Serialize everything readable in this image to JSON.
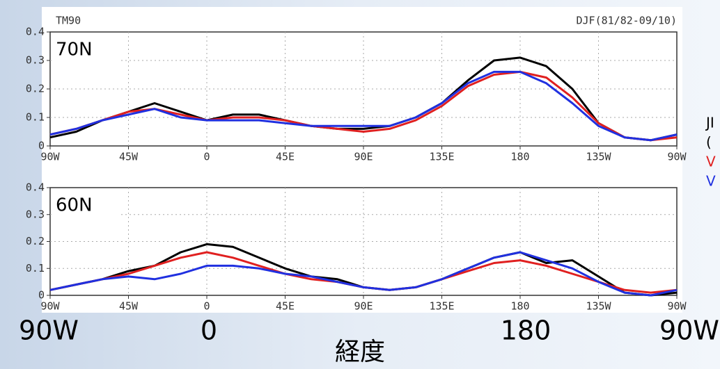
{
  "header": {
    "left": "TM90",
    "right": "DJF(81/82-09/10)"
  },
  "chart_data": [
    {
      "type": "line",
      "annotation": "70N",
      "x": [
        -90,
        -75,
        -60,
        -45,
        -30,
        -15,
        0,
        15,
        30,
        45,
        60,
        75,
        90,
        105,
        120,
        135,
        150,
        165,
        180,
        195,
        210,
        225,
        240,
        255,
        270
      ],
      "xlim": [
        -90,
        270
      ],
      "xticks": [
        {
          "value": -90,
          "label": "90W"
        },
        {
          "value": -45,
          "label": "45W"
        },
        0,
        {
          "value": 45,
          "label": "45E"
        },
        {
          "value": 90,
          "label": "90E"
        },
        {
          "value": 135,
          "label": "135E"
        },
        180,
        {
          "value": 225,
          "label": "135W"
        },
        {
          "value": 270,
          "label": "90W"
        }
      ],
      "ylim": [
        0,
        0.4
      ],
      "yticks": [
        0,
        0.1,
        0.2,
        0.3,
        0.4
      ],
      "grid": true,
      "series": [
        {
          "color": "#000000",
          "values": [
            0.03,
            0.05,
            0.09,
            0.12,
            0.15,
            0.12,
            0.09,
            0.11,
            0.11,
            0.09,
            0.07,
            0.06,
            0.06,
            0.07,
            0.1,
            0.15,
            0.23,
            0.3,
            0.31,
            0.28,
            0.2,
            0.08,
            0.03,
            0.02,
            0.04
          ]
        },
        {
          "color": "#e02020",
          "values": [
            0.04,
            0.06,
            0.09,
            0.12,
            0.13,
            0.11,
            0.09,
            0.1,
            0.1,
            0.09,
            0.07,
            0.06,
            0.05,
            0.06,
            0.09,
            0.14,
            0.21,
            0.25,
            0.26,
            0.24,
            0.17,
            0.08,
            0.03,
            0.02,
            0.03
          ]
        },
        {
          "color": "#2030e0",
          "values": [
            0.04,
            0.06,
            0.09,
            0.11,
            0.13,
            0.1,
            0.09,
            0.09,
            0.09,
            0.08,
            0.07,
            0.07,
            0.07,
            0.07,
            0.1,
            0.15,
            0.22,
            0.26,
            0.26,
            0.22,
            0.15,
            0.07,
            0.03,
            0.02,
            0.04
          ]
        }
      ]
    },
    {
      "type": "line",
      "annotation": "60N",
      "x": [
        -90,
        -75,
        -60,
        -45,
        -30,
        -15,
        0,
        15,
        30,
        45,
        60,
        75,
        90,
        105,
        120,
        135,
        150,
        165,
        180,
        195,
        210,
        225,
        240,
        255,
        270
      ],
      "xlim": [
        -90,
        270
      ],
      "xticks": [
        {
          "value": -90,
          "label": "90W"
        },
        {
          "value": -45,
          "label": "45W"
        },
        0,
        {
          "value": 45,
          "label": "45E"
        },
        {
          "value": 90,
          "label": "90E"
        },
        {
          "value": 135,
          "label": "135E"
        },
        180,
        {
          "value": 225,
          "label": "135W"
        },
        {
          "value": 270,
          "label": "90W"
        }
      ],
      "ylim": [
        0,
        0.4
      ],
      "yticks": [
        0,
        0.1,
        0.2,
        0.3,
        0.4
      ],
      "grid": true,
      "series": [
        {
          "color": "#000000",
          "values": [
            0.02,
            0.04,
            0.06,
            0.09,
            0.11,
            0.16,
            0.19,
            0.18,
            0.14,
            0.1,
            0.07,
            0.06,
            0.03,
            0.02,
            0.03,
            0.06,
            0.1,
            0.14,
            0.16,
            0.12,
            0.13,
            0.07,
            0.01,
            0.0,
            0.01
          ]
        },
        {
          "color": "#e02020",
          "values": [
            0.02,
            0.04,
            0.06,
            0.08,
            0.11,
            0.14,
            0.16,
            0.14,
            0.11,
            0.08,
            0.06,
            0.05,
            0.03,
            0.02,
            0.03,
            0.06,
            0.09,
            0.12,
            0.13,
            0.11,
            0.08,
            0.05,
            0.02,
            0.01,
            0.02
          ]
        },
        {
          "color": "#2030e0",
          "values": [
            0.02,
            0.04,
            0.06,
            0.07,
            0.06,
            0.08,
            0.11,
            0.11,
            0.1,
            0.08,
            0.07,
            0.05,
            0.03,
            0.02,
            0.03,
            0.06,
            0.1,
            0.14,
            0.16,
            0.13,
            0.1,
            0.05,
            0.01,
            0.0,
            0.02
          ]
        }
      ]
    }
  ],
  "side_labels": [
    "JI",
    "(",
    "V",
    "V"
  ],
  "footer": {
    "x_labels": [
      "90W",
      "0",
      "180",
      "90W"
    ],
    "axis_label": "経度"
  }
}
